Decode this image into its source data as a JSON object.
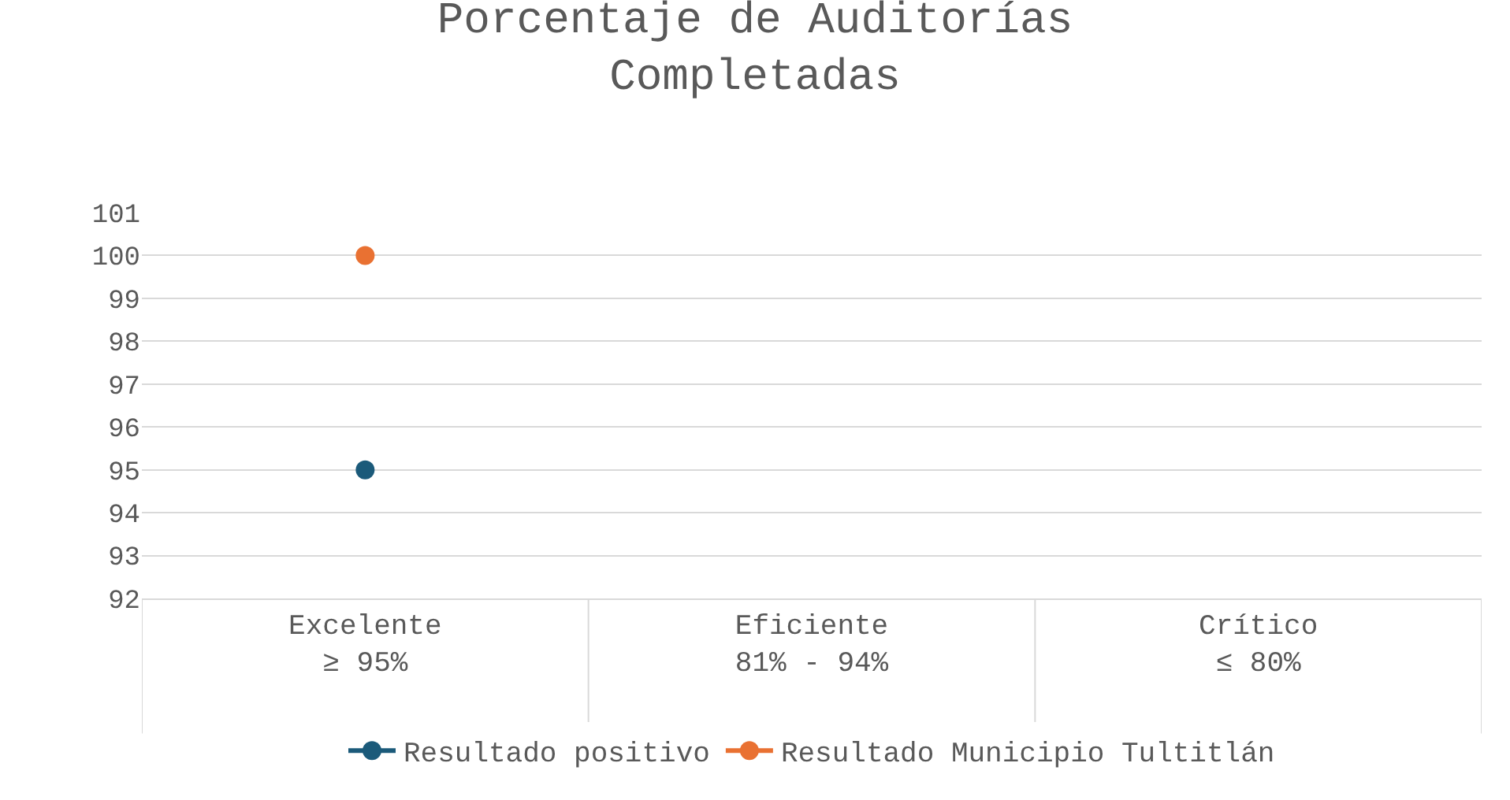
{
  "chart_data": {
    "type": "line",
    "title": "Porcentaje de Auditorías\nCompletadas",
    "categories": [
      "Excelente\n≥ 95%",
      "Eficiente\n81% - 94%",
      "Crítico\n≤ 80%"
    ],
    "series": [
      {
        "name": "Resultado positivo",
        "color": "#1b5a7a",
        "values": [
          95,
          null,
          null
        ]
      },
      {
        "name": "Resultado Municipio Tultitlán",
        "color": "#e97132",
        "values": [
          100,
          null,
          null
        ]
      }
    ],
    "ylim": [
      92,
      101
    ],
    "yticks": [
      92,
      93,
      94,
      95,
      96,
      97,
      98,
      99,
      100,
      101
    ],
    "grid": "y",
    "legend": "bottom",
    "marker": "circle",
    "line_style": "solid"
  }
}
